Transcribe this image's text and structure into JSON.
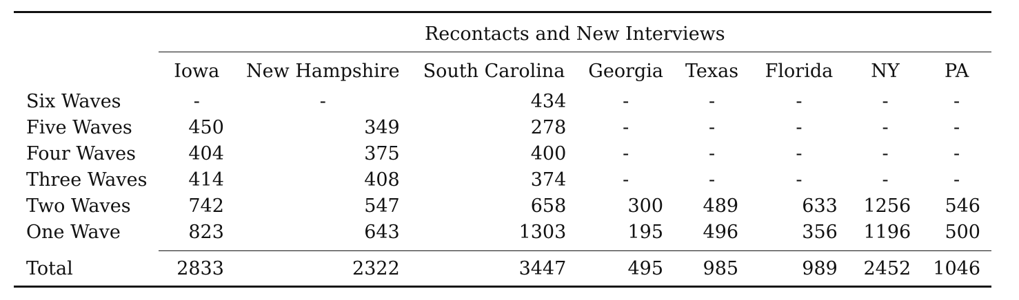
{
  "table": {
    "group_header": "Recontacts and New Interviews",
    "columns": [
      "Iowa",
      "New Hampshire",
      "South Carolina",
      "Georgia",
      "Texas",
      "Florida",
      "NY",
      "PA"
    ],
    "rows": [
      {
        "label": "Six Waves",
        "values": [
          "-",
          "-",
          "434",
          "-",
          "-",
          "-",
          "-",
          "-"
        ]
      },
      {
        "label": "Five Waves",
        "values": [
          "450",
          "349",
          "278",
          "-",
          "-",
          "-",
          "-",
          "-"
        ]
      },
      {
        "label": "Four Waves",
        "values": [
          "404",
          "375",
          "400",
          "-",
          "-",
          "-",
          "-",
          "-"
        ]
      },
      {
        "label": "Three Waves",
        "values": [
          "414",
          "408",
          "374",
          "-",
          "-",
          "-",
          "-",
          "-"
        ]
      },
      {
        "label": "Two Waves",
        "values": [
          "742",
          "547",
          "658",
          "300",
          "489",
          "633",
          "1256",
          "546"
        ]
      },
      {
        "label": "One Wave",
        "values": [
          "823",
          "643",
          "1303",
          "195",
          "496",
          "356",
          "1196",
          "500"
        ]
      }
    ],
    "total": {
      "label": "Total",
      "values": [
        "2833",
        "2322",
        "3447",
        "495",
        "985",
        "989",
        "2452",
        "1046"
      ]
    }
  }
}
